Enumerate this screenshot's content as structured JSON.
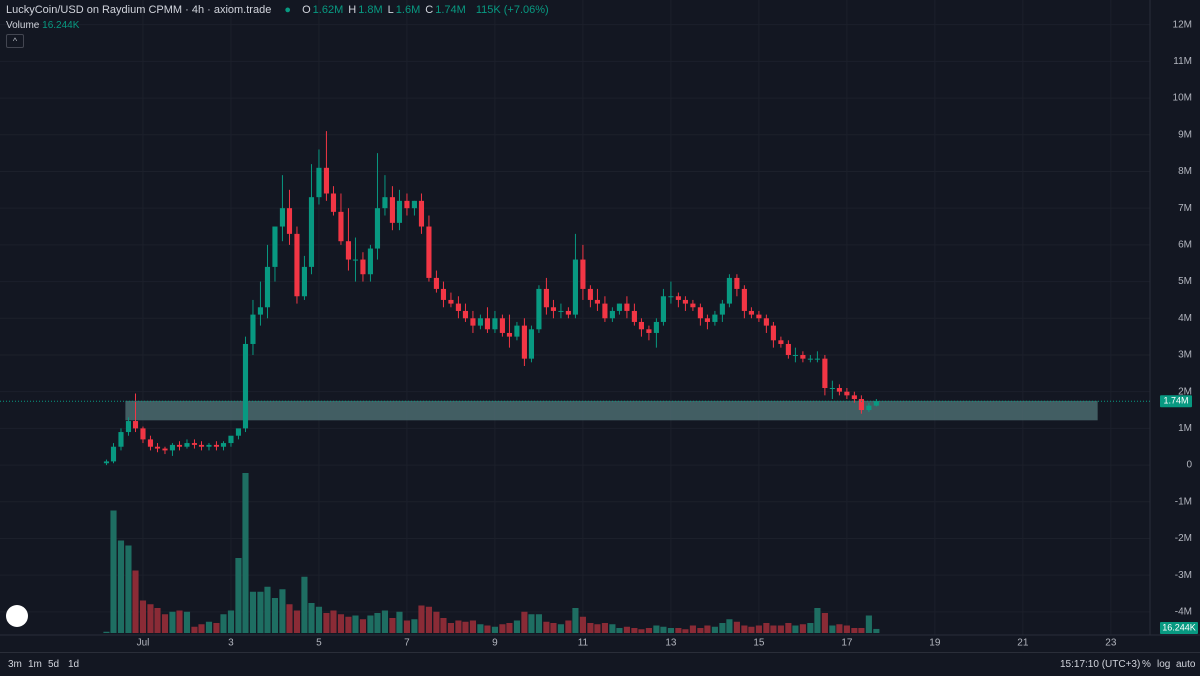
{
  "chart_data": {
    "type": "candlestick",
    "title": "LuckyCoin/USD on Raydium CPMM · 4h · axiom.trade",
    "ohlc_legend": [
      {
        "key": "O",
        "value": 1.62,
        "label": "1.62M"
      },
      {
        "key": "H",
        "value": 1.8,
        "label": "1.8M"
      },
      {
        "key": "L",
        "value": 1.6,
        "label": "1.6M"
      },
      {
        "key": "C",
        "value": 1.74,
        "label": "1.74M"
      }
    ],
    "change": "115K (+7.06%)",
    "volume_name": "Volume",
    "volume_label": {
      "value": 16.244,
      "label": "16.244K"
    },
    "price_label": {
      "value": 1.74,
      "label": "1.74M"
    },
    "up_color": "#089981",
    "down_color": "#f23645",
    "up_volume_color": "#1e6e62",
    "down_volume_color": "#8a2b36",
    "x": [
      0.17,
      0.33,
      0.5,
      0.67,
      0.83,
      1,
      1.17,
      1.33,
      1.5,
      1.67,
      1.83,
      2,
      2.17,
      2.33,
      2.5,
      2.67,
      2.83,
      3,
      3.17,
      3.33,
      3.5,
      3.67,
      3.83,
      4,
      4.17,
      4.33,
      4.5,
      4.67,
      4.83,
      5,
      5.17,
      5.33,
      5.5,
      5.67,
      5.83,
      6,
      6.17,
      6.33,
      6.5,
      6.67,
      6.83,
      7,
      7.17,
      7.33,
      7.5,
      7.67,
      7.83,
      8,
      8.17,
      8.33,
      8.5,
      8.67,
      8.83,
      9,
      9.17,
      9.33,
      9.5,
      9.67,
      9.83,
      10,
      10.17,
      10.33,
      10.5,
      10.67,
      10.83,
      11,
      11.17,
      11.33,
      11.5,
      11.67,
      11.83,
      12,
      12.17,
      12.33,
      12.5,
      12.67,
      12.83,
      13,
      13.17,
      13.33,
      13.5,
      13.67,
      13.83,
      14,
      14.17,
      14.33,
      14.5,
      14.67,
      14.83,
      15,
      15.17,
      15.33,
      15.5,
      15.67,
      15.83,
      16,
      16.17,
      16.33,
      16.5,
      16.67,
      16.83,
      17,
      17.17,
      17.33,
      17.5,
      17.67
    ],
    "open": [
      0.05,
      0.1,
      0.5,
      0.9,
      1.2,
      1.0,
      0.7,
      0.5,
      0.45,
      0.4,
      0.55,
      0.5,
      0.6,
      0.55,
      0.5,
      0.55,
      0.5,
      0.6,
      0.8,
      1.0,
      3.3,
      4.1,
      4.3,
      5.4,
      6.5,
      7.0,
      6.3,
      4.6,
      5.4,
      7.3,
      8.1,
      7.4,
      6.9,
      6.1,
      5.6,
      5.6,
      5.2,
      5.9,
      7.0,
      7.3,
      6.6,
      7.2,
      7.0,
      7.2,
      6.5,
      5.1,
      4.8,
      4.5,
      4.4,
      4.2,
      4.0,
      3.8,
      4.0,
      3.7,
      4.0,
      3.6,
      3.5,
      3.8,
      2.9,
      3.7,
      4.8,
      4.3,
      4.2,
      4.2,
      4.1,
      5.6,
      4.8,
      4.5,
      4.4,
      4.0,
      4.2,
      4.4,
      4.2,
      3.9,
      3.7,
      3.6,
      3.9,
      4.6,
      4.6,
      4.5,
      4.4,
      4.3,
      4.0,
      3.9,
      4.1,
      4.4,
      5.1,
      4.8,
      4.2,
      4.1,
      4.0,
      3.8,
      3.4,
      3.3,
      3.0,
      3.0,
      2.9,
      2.9,
      2.9,
      2.1,
      2.1,
      2.0,
      1.9,
      1.8,
      1.5,
      1.62
    ],
    "high": [
      0.15,
      0.6,
      1.0,
      1.3,
      1.95,
      1.05,
      0.8,
      0.6,
      0.5,
      0.6,
      0.65,
      0.7,
      0.7,
      0.65,
      0.6,
      0.65,
      0.65,
      0.7,
      0.9,
      3.5,
      4.5,
      5.0,
      6.0,
      6.5,
      7.9,
      7.5,
      6.5,
      5.7,
      8.2,
      8.6,
      9.1,
      7.6,
      7.4,
      7.0,
      6.2,
      5.8,
      6.0,
      8.5,
      7.9,
      7.6,
      7.5,
      7.4,
      7.2,
      7.4,
      6.8,
      5.3,
      5.0,
      4.7,
      4.6,
      4.4,
      4.2,
      4.1,
      4.3,
      4.2,
      4.1,
      4.1,
      3.9,
      4.0,
      3.8,
      4.9,
      5.1,
      4.5,
      4.4,
      4.3,
      6.3,
      6.0,
      4.9,
      4.8,
      4.6,
      4.3,
      4.4,
      4.6,
      4.4,
      4.0,
      3.8,
      4.0,
      4.8,
      5.0,
      4.7,
      4.6,
      4.5,
      4.4,
      4.1,
      4.2,
      4.5,
      5.2,
      5.2,
      4.9,
      4.3,
      4.2,
      4.1,
      3.9,
      3.5,
      3.4,
      3.2,
      3.1,
      3.0,
      3.1,
      3.0,
      2.3,
      2.2,
      2.1,
      2.0,
      1.9,
      1.7,
      1.8
    ],
    "low": [
      0.0,
      0.05,
      0.4,
      0.8,
      0.9,
      0.6,
      0.4,
      0.35,
      0.3,
      0.25,
      0.4,
      0.45,
      0.45,
      0.4,
      0.4,
      0.4,
      0.4,
      0.5,
      0.7,
      0.9,
      3.0,
      3.8,
      4.0,
      5.0,
      6.1,
      6.0,
      4.4,
      4.5,
      5.2,
      7.1,
      7.2,
      6.8,
      6.0,
      5.3,
      5.0,
      5.0,
      5.0,
      5.6,
      6.8,
      6.4,
      6.4,
      6.8,
      6.8,
      6.3,
      5.0,
      4.7,
      4.3,
      4.3,
      4.0,
      3.9,
      3.6,
      3.7,
      3.6,
      3.6,
      3.5,
      3.2,
      3.4,
      2.7,
      2.8,
      3.6,
      4.1,
      4.0,
      4.0,
      4.0,
      4.0,
      4.5,
      4.3,
      4.2,
      3.9,
      3.9,
      4.1,
      4.0,
      3.8,
      3.5,
      3.4,
      3.2,
      3.8,
      4.4,
      4.3,
      4.2,
      4.2,
      3.8,
      3.7,
      3.8,
      3.9,
      4.3,
      4.6,
      4.0,
      4.0,
      3.9,
      3.6,
      3.2,
      3.2,
      2.9,
      2.8,
      2.8,
      2.8,
      2.8,
      1.9,
      1.8,
      1.9,
      1.8,
      1.7,
      1.4,
      1.45,
      1.6
    ],
    "close": [
      0.1,
      0.5,
      0.9,
      1.2,
      1.0,
      0.7,
      0.5,
      0.45,
      0.4,
      0.55,
      0.5,
      0.6,
      0.55,
      0.5,
      0.55,
      0.5,
      0.6,
      0.8,
      1.0,
      3.3,
      4.1,
      4.3,
      5.4,
      6.5,
      7.0,
      6.3,
      4.6,
      5.4,
      7.3,
      8.1,
      7.4,
      6.9,
      6.1,
      5.6,
      5.6,
      5.2,
      5.9,
      7.0,
      7.3,
      6.6,
      7.2,
      7.0,
      7.2,
      6.5,
      5.1,
      4.8,
      4.5,
      4.4,
      4.2,
      4.0,
      3.8,
      4.0,
      3.7,
      4.0,
      3.6,
      3.5,
      3.8,
      2.9,
      3.7,
      4.8,
      4.3,
      4.2,
      4.2,
      4.1,
      5.6,
      4.8,
      4.5,
      4.4,
      4.0,
      4.2,
      4.4,
      4.2,
      3.9,
      3.7,
      3.6,
      3.9,
      4.6,
      4.6,
      4.5,
      4.4,
      4.3,
      4.0,
      3.9,
      4.1,
      4.4,
      5.1,
      4.8,
      4.2,
      4.1,
      4.0,
      3.8,
      3.4,
      3.3,
      3.0,
      3.0,
      2.9,
      2.9,
      2.9,
      2.1,
      2.1,
      2.0,
      1.9,
      1.8,
      1.5,
      1.62,
      1.74
    ],
    "volume": [
      5,
      490,
      370,
      350,
      250,
      130,
      115,
      100,
      75,
      85,
      90,
      85,
      25,
      35,
      45,
      40,
      75,
      90,
      300,
      640,
      165,
      165,
      185,
      140,
      175,
      115,
      90,
      225,
      120,
      105,
      80,
      90,
      75,
      65,
      70,
      55,
      70,
      80,
      90,
      60,
      85,
      50,
      55,
      110,
      105,
      85,
      60,
      40,
      50,
      45,
      50,
      35,
      30,
      25,
      35,
      40,
      50,
      85,
      75,
      75,
      45,
      40,
      35,
      50,
      100,
      65,
      40,
      35,
      40,
      35,
      20,
      25,
      20,
      15,
      20,
      30,
      25,
      20,
      20,
      15,
      30,
      20,
      30,
      25,
      40,
      55,
      45,
      30,
      25,
      30,
      40,
      30,
      30,
      40,
      30,
      35,
      40,
      100,
      80,
      30,
      35,
      30,
      20,
      20,
      70,
      16.244
    ],
    "vlim": [
      0,
      660
    ],
    "zone": {
      "x": [
        0.6,
        22.7
      ],
      "y": [
        1.22,
        1.75
      ],
      "color": "#4b6b6e"
    },
    "xlim": [
      -2.25,
      23.89
    ],
    "xticks": [
      {
        "value": 1,
        "label": "Jul"
      },
      3,
      5,
      7,
      9,
      11,
      13,
      15,
      17,
      19,
      21,
      23
    ],
    "ylim": [
      -4.63,
      12.4
    ],
    "yticks": [
      {
        "value": -4,
        "label": "-4M"
      },
      {
        "value": -3,
        "label": "-3M"
      },
      {
        "value": -2,
        "label": "-2M"
      },
      {
        "value": -1,
        "label": "-1M"
      },
      0,
      {
        "value": 1,
        "label": "1M"
      },
      {
        "value": 2,
        "label": "2M"
      },
      {
        "value": 3,
        "label": "3M"
      },
      {
        "value": 4,
        "label": "4M"
      },
      {
        "value": 5,
        "label": "5M"
      },
      {
        "value": 6,
        "label": "6M"
      },
      {
        "value": 7,
        "label": "7M"
      },
      {
        "value": 8,
        "label": "8M"
      },
      {
        "value": 9,
        "label": "9M"
      },
      {
        "value": 10,
        "label": "10M"
      },
      {
        "value": 11,
        "label": "11M"
      },
      {
        "value": 12,
        "label": "12M"
      }
    ],
    "grid": true
  },
  "toolbar": {
    "ranges": [
      "3m",
      "1m",
      "5d",
      "1d"
    ],
    "time": "15:17:10 (UTC+3)",
    "options": [
      "%",
      "log",
      "auto"
    ]
  }
}
